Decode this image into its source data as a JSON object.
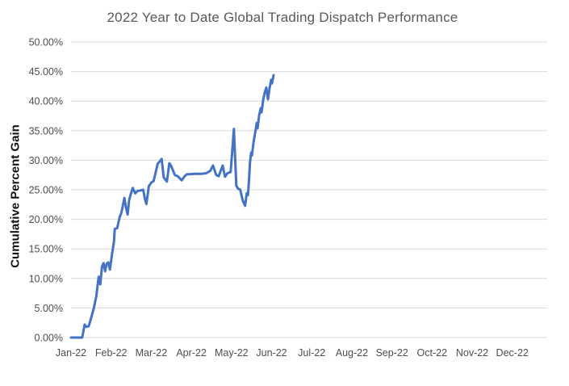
{
  "chart_data": {
    "type": "line",
    "title": "2022 Year to Date Global Trading Dispatch Performance",
    "xlabel": "",
    "ylabel": "Cumulative Percent Gain",
    "legend": "none",
    "grid": "horizontal",
    "background": "#ffffff",
    "x_axis": {
      "tick_labels": [
        "Jan-22",
        "Feb-22",
        "Mar-22",
        "Apr-22",
        "May-22",
        "Jun-22",
        "Jul-22",
        "Aug-22",
        "Sep-22",
        "Oct-22",
        "Nov-22",
        "Dec-22"
      ],
      "range_months": [
        0,
        11.87
      ]
    },
    "y_axis": {
      "tick_labels": [
        "0.00%",
        "5.00%",
        "10.00%",
        "15.00%",
        "20.00%",
        "25.00%",
        "30.00%",
        "35.00%",
        "40.00%",
        "45.00%",
        "50.00%"
      ],
      "tick_values": [
        0,
        5,
        10,
        15,
        20,
        25,
        30,
        35,
        40,
        45,
        50
      ],
      "range": [
        0,
        50
      ],
      "format": "percent"
    },
    "series": [
      {
        "name": "Cumulative Percent Gain",
        "color": "#4472C4",
        "x_unit": "months_after_Jan-22",
        "points": [
          [
            0.0,
            0.0
          ],
          [
            0.28,
            0.0
          ],
          [
            0.34,
            2.2
          ],
          [
            0.38,
            1.8
          ],
          [
            0.44,
            1.9
          ],
          [
            0.51,
            3.5
          ],
          [
            0.57,
            5.0
          ],
          [
            0.63,
            7.0
          ],
          [
            0.69,
            10.3
          ],
          [
            0.73,
            9.0
          ],
          [
            0.77,
            12.0
          ],
          [
            0.81,
            12.6
          ],
          [
            0.85,
            11.2
          ],
          [
            0.89,
            12.5
          ],
          [
            0.93,
            12.7
          ],
          [
            0.97,
            11.5
          ],
          [
            1.03,
            14.5
          ],
          [
            1.07,
            16.2
          ],
          [
            1.09,
            18.4
          ],
          [
            1.15,
            18.5
          ],
          [
            1.21,
            20.3
          ],
          [
            1.25,
            21.0
          ],
          [
            1.29,
            22.2
          ],
          [
            1.33,
            23.6
          ],
          [
            1.37,
            22.0
          ],
          [
            1.41,
            20.8
          ],
          [
            1.45,
            23.3
          ],
          [
            1.49,
            24.3
          ],
          [
            1.54,
            25.3
          ],
          [
            1.6,
            24.4
          ],
          [
            1.66,
            24.8
          ],
          [
            1.74,
            24.9
          ],
          [
            1.8,
            25.0
          ],
          [
            1.84,
            23.5
          ],
          [
            1.88,
            22.6
          ],
          [
            1.94,
            25.6
          ],
          [
            2.0,
            26.2
          ],
          [
            2.06,
            26.5
          ],
          [
            2.16,
            29.4
          ],
          [
            2.26,
            30.2
          ],
          [
            2.31,
            27.1
          ],
          [
            2.39,
            26.4
          ],
          [
            2.45,
            29.5
          ],
          [
            2.49,
            29.1
          ],
          [
            2.59,
            27.5
          ],
          [
            2.66,
            27.3
          ],
          [
            2.76,
            26.6
          ],
          [
            2.82,
            27.2
          ],
          [
            2.88,
            27.6
          ],
          [
            3.07,
            27.7
          ],
          [
            3.27,
            27.7
          ],
          [
            3.37,
            27.8
          ],
          [
            3.47,
            28.2
          ],
          [
            3.54,
            29.1
          ],
          [
            3.62,
            27.5
          ],
          [
            3.68,
            27.3
          ],
          [
            3.78,
            29.1
          ],
          [
            3.84,
            27.2
          ],
          [
            3.9,
            27.8
          ],
          [
            3.98,
            28.0
          ],
          [
            4.06,
            35.3
          ],
          [
            4.12,
            25.7
          ],
          [
            4.16,
            25.2
          ],
          [
            4.22,
            25.0
          ],
          [
            4.28,
            23.2
          ],
          [
            4.34,
            22.3
          ],
          [
            4.38,
            24.4
          ],
          [
            4.41,
            24.1
          ],
          [
            4.44,
            27.0
          ],
          [
            4.46,
            29.6
          ],
          [
            4.49,
            31.3
          ],
          [
            4.51,
            30.8
          ],
          [
            4.55,
            33.0
          ],
          [
            4.59,
            34.6
          ],
          [
            4.63,
            36.3
          ],
          [
            4.65,
            35.4
          ],
          [
            4.69,
            37.6
          ],
          [
            4.73,
            38.8
          ],
          [
            4.75,
            38.1
          ],
          [
            4.79,
            40.2
          ],
          [
            4.83,
            41.5
          ],
          [
            4.87,
            42.3
          ],
          [
            4.91,
            40.3
          ],
          [
            4.95,
            42.2
          ],
          [
            4.99,
            43.6
          ],
          [
            5.01,
            43.0
          ],
          [
            5.05,
            44.4
          ]
        ]
      }
    ],
    "colors": {
      "line": "#4472C4",
      "gridline": "#D9D9D9",
      "title_text": "#595959",
      "tick_text": "#4d4d4d",
      "axis_title_text": "#111111",
      "background": "#ffffff"
    }
  }
}
